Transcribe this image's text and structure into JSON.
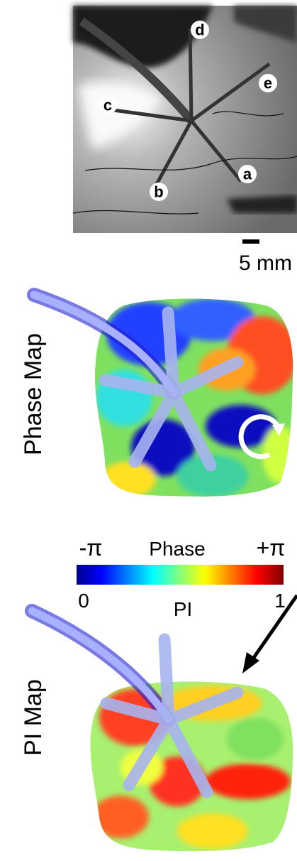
{
  "photo": {
    "labels": [
      "d",
      "e",
      "c",
      "a",
      "b"
    ],
    "scale_bar": "5 mm"
  },
  "phase_map": {
    "title": "Phase Map"
  },
  "colorbar": {
    "top_left": "-π",
    "top_center": "Phase",
    "top_right": "+π",
    "bottom_left": "0",
    "bottom_center": "PI",
    "bottom_right": "1"
  },
  "pi_map": {
    "title": "PI Map"
  }
}
